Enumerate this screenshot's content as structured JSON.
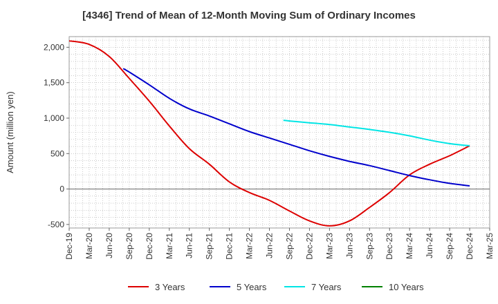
{
  "chart_data": {
    "type": "line",
    "title": "[4346]  Trend of Mean of 12-Month Moving Sum of Ordinary Incomes",
    "ylabel": "Amount (million yen)",
    "xlabel": "",
    "ylim": [
      -550,
      2150
    ],
    "yticks": [
      -500,
      0,
      500,
      1000,
      1500,
      2000
    ],
    "ytick_labels": [
      "-500",
      "0",
      "500",
      "1,000",
      "1,500",
      "2,000"
    ],
    "xticks": [
      "Dec-19",
      "Mar-20",
      "Jun-20",
      "Sep-20",
      "Dec-20",
      "Mar-21",
      "Jun-21",
      "Sep-21",
      "Dec-21",
      "Mar-22",
      "Jun-22",
      "Sep-22",
      "Dec-22",
      "Mar-23",
      "Jun-23",
      "Sep-23",
      "Dec-23",
      "Mar-24",
      "Jun-24",
      "Sep-24",
      "Dec-24",
      "Mar-25"
    ],
    "legend_position": "bottom",
    "series": [
      {
        "name": "3 Years",
        "color": "#dd0000",
        "points": [
          [
            0,
            2090
          ],
          [
            1,
            2040
          ],
          [
            2,
            1870
          ],
          [
            3,
            1560
          ],
          [
            4,
            1240
          ],
          [
            5,
            890
          ],
          [
            6,
            570
          ],
          [
            7,
            350
          ],
          [
            8,
            100
          ],
          [
            9,
            -50
          ],
          [
            10,
            -160
          ],
          [
            11,
            -310
          ],
          [
            12,
            -450
          ],
          [
            13,
            -520
          ],
          [
            14,
            -450
          ],
          [
            15,
            -260
          ],
          [
            16,
            -50
          ],
          [
            17,
            200
          ],
          [
            18,
            350
          ],
          [
            19,
            470
          ],
          [
            20,
            610
          ]
        ]
      },
      {
        "name": "5 Years",
        "color": "#0000cc",
        "points": [
          [
            2.7,
            1700
          ],
          [
            3,
            1650
          ],
          [
            4,
            1470
          ],
          [
            5,
            1280
          ],
          [
            6,
            1130
          ],
          [
            7,
            1030
          ],
          [
            8,
            920
          ],
          [
            9,
            810
          ],
          [
            10,
            720
          ],
          [
            11,
            630
          ],
          [
            12,
            540
          ],
          [
            13,
            460
          ],
          [
            14,
            390
          ],
          [
            15,
            330
          ],
          [
            16,
            260
          ],
          [
            17,
            190
          ],
          [
            18,
            130
          ],
          [
            19,
            80
          ],
          [
            20,
            45
          ]
        ]
      },
      {
        "name": "7 Years",
        "color": "#00e5e5",
        "points": [
          [
            10.7,
            970
          ],
          [
            11,
            960
          ],
          [
            12,
            935
          ],
          [
            13,
            910
          ],
          [
            14,
            875
          ],
          [
            15,
            840
          ],
          [
            16,
            800
          ],
          [
            17,
            750
          ],
          [
            18,
            690
          ],
          [
            19,
            640
          ],
          [
            20,
            610
          ]
        ]
      },
      {
        "name": "10 Years",
        "color": "#008000",
        "points": []
      }
    ]
  }
}
